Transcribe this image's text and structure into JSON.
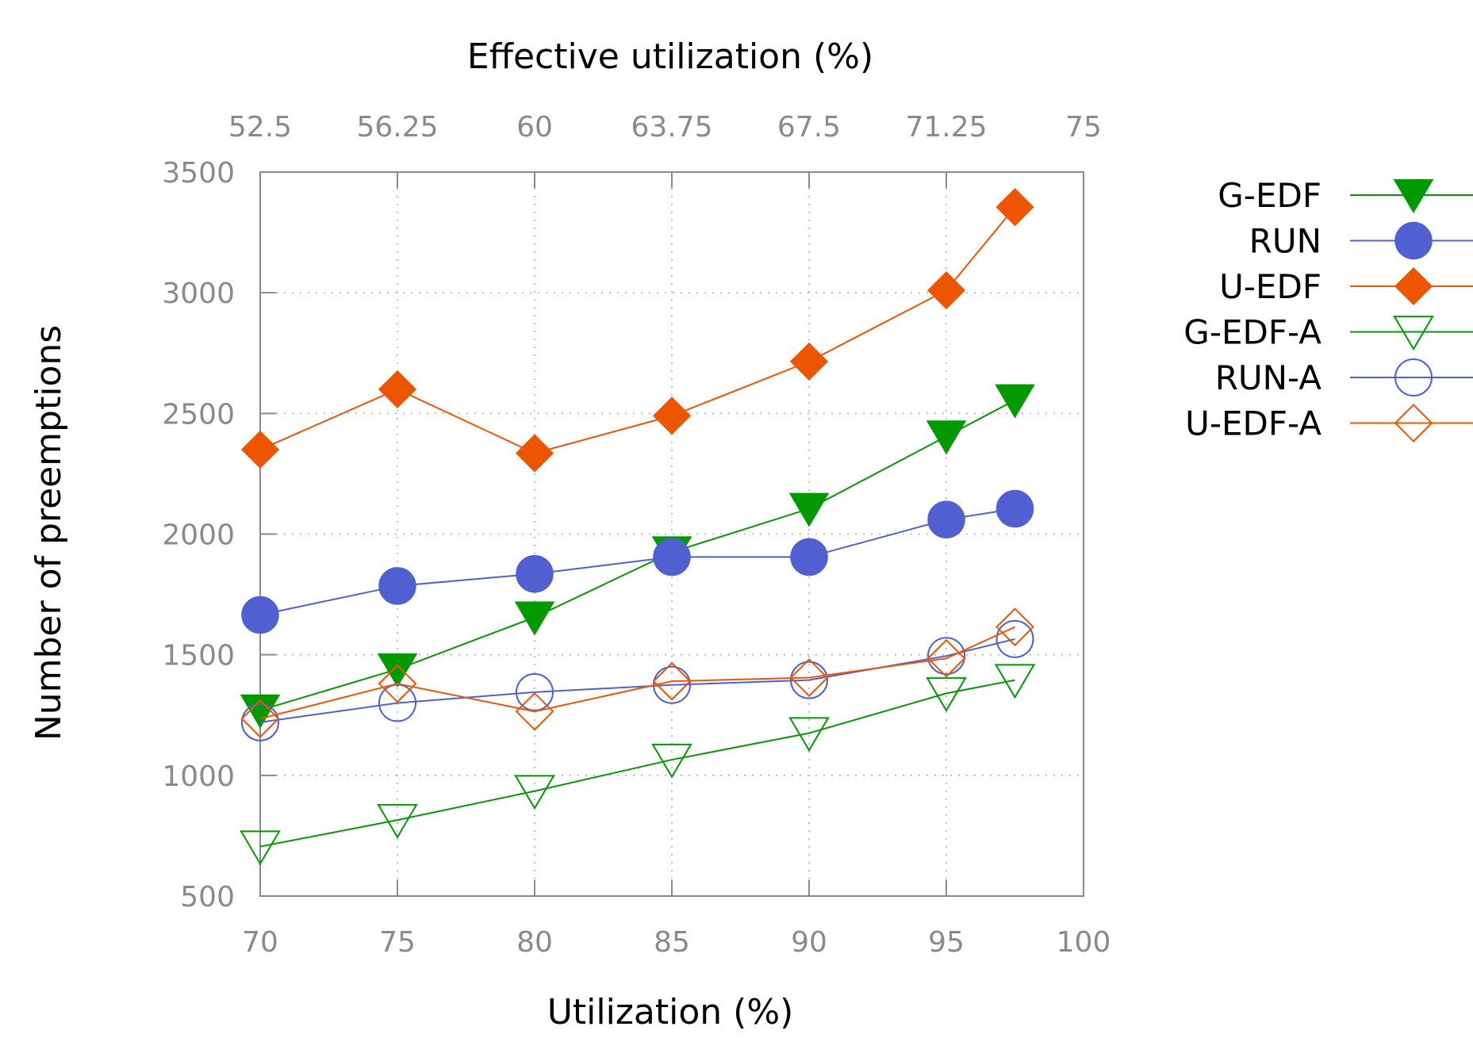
{
  "chart_data": {
    "type": "line",
    "x": [
      70,
      75,
      80,
      85,
      90,
      95,
      97.5
    ],
    "xlabel": "Utilization (%)",
    "ylabel": "Number of preemptions",
    "x2label": "Effective utilization (%)",
    "xlim": [
      70,
      100
    ],
    "ylim": [
      500,
      3500
    ],
    "xticks": [
      "70",
      "75",
      "80",
      "85",
      "90",
      "95",
      "100"
    ],
    "yticks": [
      "500",
      "1000",
      "1500",
      "2000",
      "2500",
      "3000",
      "3500"
    ],
    "x2ticks": [
      "52.5",
      "56.25",
      "60",
      "63.75",
      "67.5",
      "71.25",
      "75"
    ],
    "grid": true,
    "legend_position": "outside-right",
    "series": [
      {
        "name": "G-EDF",
        "color": "#009900",
        "marker": "triangle-down-filled",
        "values": [
          1270,
          1440,
          1655,
          1925,
          2105,
          2405,
          2555
        ]
      },
      {
        "name": "RUN",
        "color": "#5060d0",
        "marker": "circle-filled",
        "values": [
          1665,
          1785,
          1835,
          1905,
          1905,
          2060,
          2105
        ]
      },
      {
        "name": "U-EDF",
        "color": "#ee5500",
        "marker": "diamond-filled",
        "values": [
          2350,
          2600,
          2335,
          2490,
          2715,
          3010,
          3355
        ]
      },
      {
        "name": "G-EDF-A",
        "color": "#009900",
        "marker": "triangle-down-open",
        "values": [
          705,
          815,
          935,
          1065,
          1175,
          1340,
          1395
        ]
      },
      {
        "name": "RUN-A",
        "color": "#5060d0",
        "marker": "circle-open",
        "values": [
          1220,
          1300,
          1345,
          1375,
          1395,
          1495,
          1565
        ]
      },
      {
        "name": "U-EDF-A",
        "color": "#ee5500",
        "marker": "diamond-open",
        "values": [
          1235,
          1380,
          1265,
          1390,
          1405,
          1485,
          1615
        ]
      }
    ]
  }
}
